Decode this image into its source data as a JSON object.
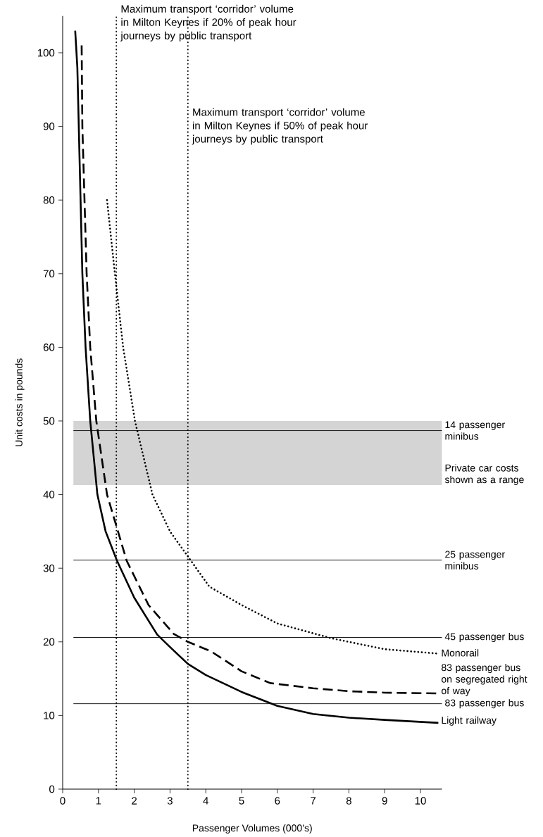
{
  "chart_data": {
    "type": "line",
    "xlabel": "Passenger Volumes (000’s)",
    "ylabel": "Unit costs in pounds",
    "xlim": [
      0,
      10.6
    ],
    "ylim": [
      0,
      105
    ],
    "xticks": [
      0,
      1,
      2,
      3,
      4,
      5,
      6,
      7,
      8,
      9,
      10
    ],
    "yticks": [
      0,
      10,
      20,
      30,
      40,
      50,
      60,
      70,
      80,
      90,
      100
    ],
    "series": [
      {
        "name": "Light railway",
        "color": "#000000",
        "line_style": "solid",
        "x": [
          0.35,
          0.41,
          0.5,
          0.55,
          0.64,
          0.77,
          0.97,
          1.2,
          1.52,
          2.0,
          2.64,
          3.0,
          3.5,
          4.0,
          5.0,
          6.0,
          7.0,
          8.0,
          9.0,
          10.5
        ],
        "values": [
          103,
          98,
          80,
          70,
          60,
          50,
          40,
          35,
          31,
          26,
          21,
          19.3,
          17,
          15.5,
          13.2,
          11.3,
          10.2,
          9.7,
          9.4,
          9.0
        ]
      },
      {
        "name": "83 passenger bus on segregated right of way",
        "color": "#000000",
        "line_style": "dashed",
        "x": [
          0.53,
          0.55,
          0.67,
          0.77,
          0.94,
          1.24,
          1.79,
          2.4,
          3.1,
          3.5,
          4.15,
          5.0,
          5.8,
          7.0,
          8.0,
          9.0,
          10.5
        ],
        "values": [
          101,
          90,
          70,
          60,
          50,
          40,
          31,
          25,
          21.1,
          20,
          18.7,
          16,
          14.4,
          13.7,
          13.3,
          13.1,
          13.0
        ]
      },
      {
        "name": "Monorail",
        "color": "#000000",
        "line_style": "dotted",
        "x": [
          1.24,
          1.46,
          1.69,
          2.02,
          2.51,
          3.0,
          3.5,
          4.1,
          5.0,
          6.0,
          7.5,
          9.0,
          10.5
        ],
        "values": [
          80,
          70,
          60,
          50,
          40,
          35,
          31.6,
          27.5,
          25,
          22.5,
          20.5,
          19,
          18.4
        ]
      }
    ],
    "ref_lines": [
      {
        "axis": "x",
        "value": 1.5,
        "label": "Maximum transport ‘corridor’ volume in Milton Keynes if 20% of peak hour journeys by public transport",
        "line_style": "dotted",
        "color": "#000000"
      },
      {
        "axis": "x",
        "value": 3.5,
        "label": "Maximum transport ‘corridor’ volume in Milton Keynes if 50% of peak hour journeys by public transport",
        "line_style": "dotted",
        "color": "#000000"
      },
      {
        "axis": "y",
        "value": 48.7,
        "label": "14 passenger minibus",
        "line_style": "solid",
        "color": "#000000"
      },
      {
        "axis": "y",
        "value": 31.1,
        "label": "25 passenger minibus",
        "line_style": "solid",
        "color": "#000000"
      },
      {
        "axis": "y",
        "value": 20.6,
        "label": "45 passenger bus",
        "line_style": "solid",
        "color": "#000000"
      },
      {
        "axis": "y",
        "value": 11.6,
        "label": "83 passenger bus",
        "line_style": "solid",
        "color": "#000000"
      }
    ],
    "bands": [
      {
        "axis": "y",
        "from": 41.3,
        "to": 50,
        "label": "Private car costs shown as a range",
        "color": "#d4d4d4"
      }
    ]
  }
}
